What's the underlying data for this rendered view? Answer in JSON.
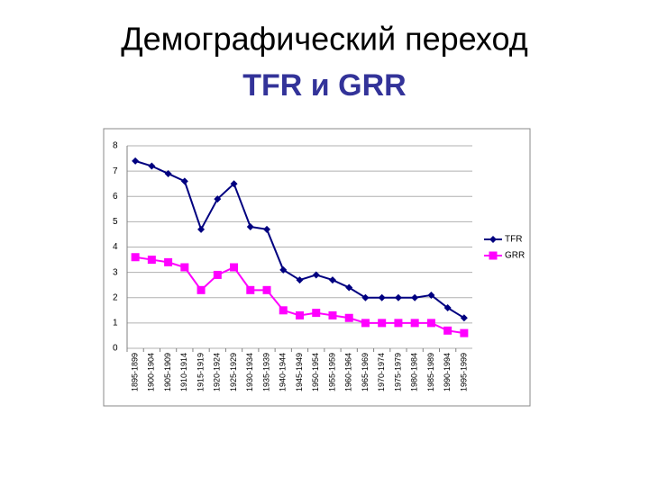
{
  "chart_data": {
    "type": "line",
    "title": "Демографический переход",
    "subtitle": "TFR и GRR",
    "categories": [
      "1895-1899",
      "1900-1904",
      "1905-1909",
      "1910-1914",
      "1915-1919",
      "1920-1924",
      "1925-1929",
      "1930-1934",
      "1935-1939",
      "1940-1944",
      "1945-1949",
      "1950-1954",
      "1955-1959",
      "1960-1964",
      "1965-1969",
      "1970-1974",
      "1975-1979",
      "1980-1984",
      "1985-1989",
      "1990-1994",
      "1995-1999"
    ],
    "series": [
      {
        "name": "TFR",
        "color": "#000080",
        "marker": "diamond",
        "values": [
          7.4,
          7.2,
          6.9,
          6.6,
          4.7,
          5.9,
          6.5,
          4.8,
          4.7,
          3.1,
          2.7,
          2.9,
          2.7,
          2.4,
          2.0,
          2.0,
          2.0,
          2.0,
          2.1,
          1.6,
          1.2
        ]
      },
      {
        "name": "GRR",
        "color": "#ff00ff",
        "marker": "square",
        "values": [
          3.6,
          3.5,
          3.4,
          3.2,
          2.3,
          2.9,
          3.2,
          2.3,
          2.3,
          1.5,
          1.3,
          1.4,
          1.3,
          1.2,
          1.0,
          1.0,
          1.0,
          1.0,
          1.0,
          0.7,
          0.6
        ]
      }
    ],
    "ylim": [
      0,
      8
    ],
    "yticks": [
      0,
      1,
      2,
      3,
      4,
      5,
      6,
      7,
      8
    ],
    "grid": true,
    "legend": "right"
  }
}
